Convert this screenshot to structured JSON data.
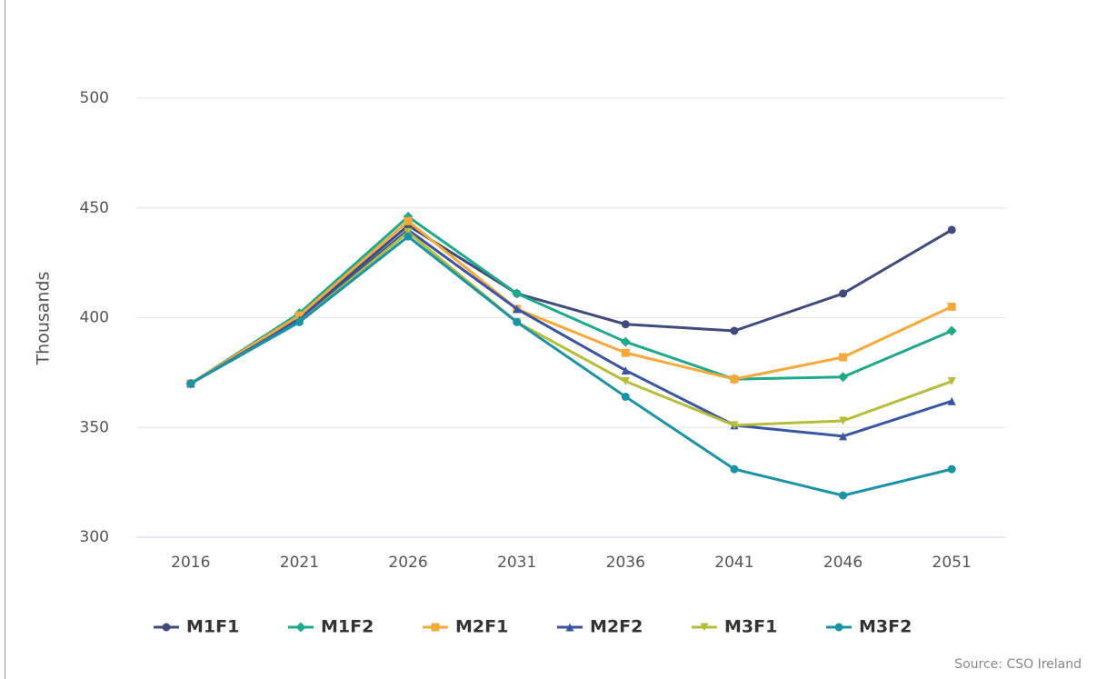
{
  "chart_data": {
    "type": "line",
    "y_label": "Thousands",
    "source": "Source: CSO Ireland",
    "categories": [
      "2016",
      "2021",
      "2026",
      "2031",
      "2036",
      "2041",
      "2046",
      "2051"
    ],
    "series": [
      {
        "name": "M1F1",
        "color": "#3f4b7d",
        "marker": "circle",
        "values": [
          370,
          400,
          442,
          411,
          397,
          394,
          411,
          440
        ]
      },
      {
        "name": "M1F2",
        "color": "#1ea98b",
        "marker": "diamond",
        "values": [
          370,
          402,
          446,
          411,
          389,
          372,
          373,
          394
        ]
      },
      {
        "name": "M2F1",
        "color": "#f5a93b",
        "marker": "square",
        "values": [
          370,
          401,
          444,
          404,
          384,
          372,
          382,
          405
        ]
      },
      {
        "name": "M2F2",
        "color": "#3a55a4",
        "marker": "triangle",
        "values": [
          370,
          399,
          440,
          404,
          376,
          351,
          346,
          362
        ]
      },
      {
        "name": "M3F1",
        "color": "#b5bd3a",
        "marker": "triangle-down",
        "values": [
          370,
          398,
          439,
          398,
          371,
          351,
          353,
          371
        ]
      },
      {
        "name": "M3F2",
        "color": "#1a93a8",
        "marker": "circle",
        "values": [
          370,
          398,
          437,
          398,
          364,
          331,
          319,
          331
        ]
      }
    ],
    "ylim": [
      300,
      500
    ],
    "yticks": [
      300,
      350,
      400,
      450,
      500
    ],
    "grid": true
  }
}
